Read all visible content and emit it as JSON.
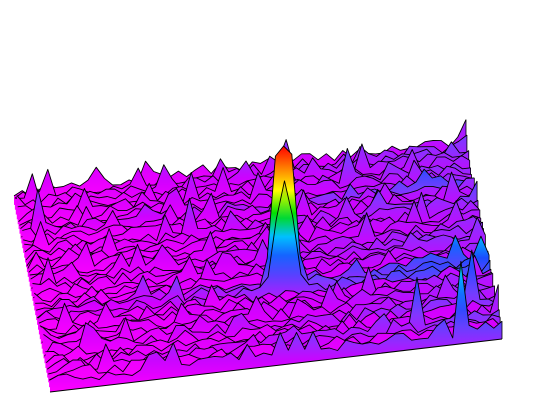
{
  "chart_data": {
    "type": "surface-waterfall",
    "title": "",
    "xlabel": "",
    "ylabel": "",
    "zlabel": "",
    "grid": false,
    "legend": "none",
    "colormap": [
      "#ff00ff",
      "#d000ff",
      "#7a3cff",
      "#1a4dff",
      "#00c0ff",
      "#00e000",
      "#ffff00",
      "#ff8000",
      "#ff0000"
    ],
    "z_range": [
      0,
      1
    ],
    "grid_size": {
      "rows": 40,
      "cols": 56
    },
    "noise_level": 0.12,
    "background_seed": 7,
    "peaks": [
      {
        "row": 25,
        "col": 30,
        "height": 1.0,
        "width_rows": 1.2,
        "width_cols": 1.6,
        "shape": "plateau"
      },
      {
        "row": 8,
        "col": 2,
        "height": 0.35,
        "width_rows": 0.6,
        "width_cols": 0.6,
        "shape": "spike"
      },
      {
        "row": 39,
        "col": 50,
        "height": 0.55,
        "width_rows": 0.5,
        "width_cols": 0.5,
        "shape": "spike"
      },
      {
        "row": 33,
        "col": 52,
        "height": 0.42,
        "width_rows": 0.5,
        "width_cols": 0.5,
        "shape": "spike"
      },
      {
        "row": 36,
        "col": 45,
        "height": 0.38,
        "width_rows": 0.5,
        "width_cols": 0.5,
        "shape": "spike"
      },
      {
        "row": 12,
        "col": 20,
        "height": 0.3,
        "width_rows": 0.6,
        "width_cols": 0.6,
        "shape": "spike"
      },
      {
        "row": 5,
        "col": 40,
        "height": 0.28,
        "width_rows": 0.6,
        "width_cols": 0.6,
        "shape": "spike"
      }
    ]
  }
}
